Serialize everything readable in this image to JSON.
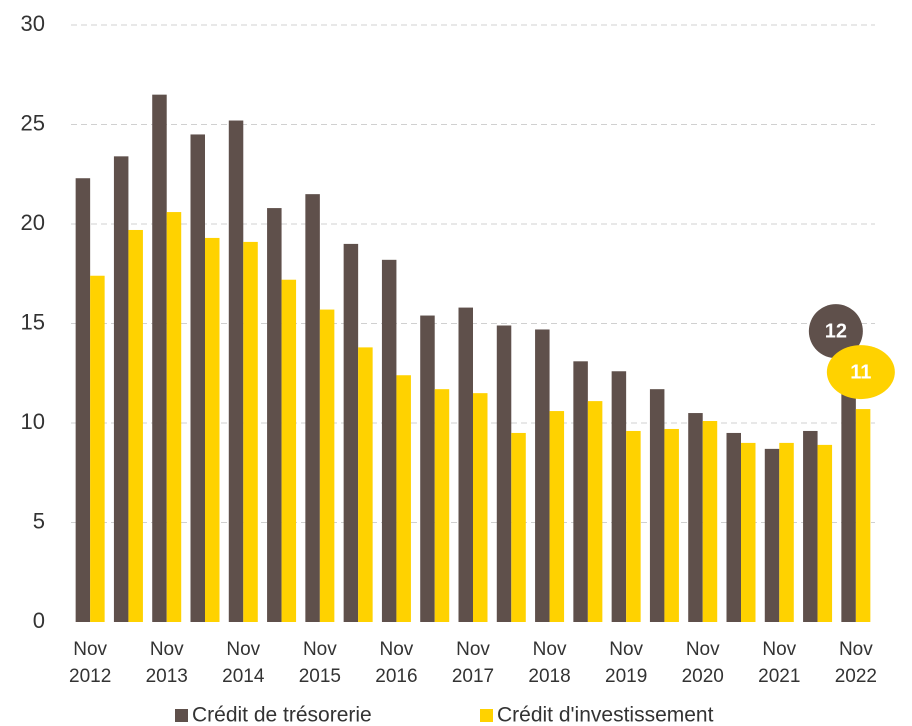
{
  "chart_data": {
    "type": "bar",
    "categories": [
      "Nov 2012",
      null,
      "Nov 2013",
      null,
      "Nov 2014",
      null,
      "Nov 2015",
      null,
      "Nov 2016",
      null,
      "Nov 2017",
      null,
      "Nov 2018",
      null,
      "Nov 2019",
      null,
      "Nov 2020",
      null,
      "Nov 2021",
      null,
      "Nov 2022"
    ],
    "series": [
      {
        "name": "Crédit de trésorerie",
        "color": "#5f504b",
        "values": [
          22.3,
          23.4,
          26.5,
          24.5,
          25.2,
          20.8,
          21.5,
          19.0,
          18.2,
          15.4,
          15.8,
          14.9,
          14.7,
          13.1,
          12.6,
          11.7,
          10.5,
          9.5,
          8.7,
          9.6,
          11.5
        ],
        "value_labels": [
          null,
          null,
          null,
          null,
          null,
          null,
          null,
          null,
          null,
          null,
          null,
          null,
          null,
          null,
          null,
          null,
          null,
          null,
          null,
          null,
          "12"
        ]
      },
      {
        "name": "Crédit d'investissement",
        "color": "#ffd200",
        "values": [
          17.4,
          19.7,
          20.6,
          19.3,
          19.1,
          17.2,
          15.7,
          13.8,
          12.4,
          11.7,
          11.5,
          9.5,
          10.6,
          11.1,
          9.6,
          9.7,
          10.1,
          9.0,
          9.0,
          8.9,
          10.7
        ],
        "value_labels": [
          null,
          null,
          null,
          null,
          null,
          null,
          null,
          null,
          null,
          null,
          null,
          null,
          null,
          null,
          null,
          null,
          null,
          null,
          null,
          null,
          "11"
        ]
      }
    ],
    "ylim": [
      0,
      30
    ],
    "yticks": [
      0,
      5,
      10,
      15,
      20,
      25,
      30
    ],
    "grid": true,
    "legend": "bottom"
  }
}
